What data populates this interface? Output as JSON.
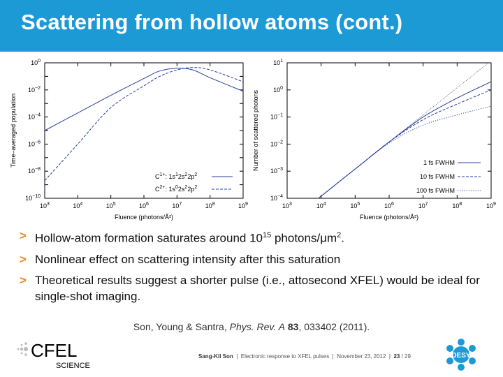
{
  "header": {
    "title": "Scattering from hollow atoms (cont.)",
    "bg_color": "#1b9ad6"
  },
  "bullets": [
    {
      "marker": ">",
      "text": "Hollow-atom formation saturates around 10",
      "sup": "15",
      "tail": " photons/μm",
      "sup2": "2",
      "tail2": "."
    },
    {
      "marker": ">",
      "text": "Nonlinear effect on scattering intensity after this saturation"
    },
    {
      "marker": ">",
      "text": "Theoretical results suggest a shorter pulse (i.e., attosecond XFEL) would be ideal for single-shot imaging."
    }
  ],
  "citation": {
    "authors": "Son, Young & Santra,",
    "journal": "Phys. Rev. A",
    "volume": "83",
    "rest": ", 033402 (2011)."
  },
  "footer": {
    "author": "Sang-Kil Son",
    "talk": "Electronic response to XFEL pulses",
    "date": "November 23, 2012",
    "page": "23",
    "total": "/ 29",
    "sep": "|"
  },
  "logos": {
    "cfel": "CFEL",
    "cfel_sub": "SCIENCE",
    "desy": "DESY",
    "cfel_color": "#1a3a6e",
    "desy_color": "#1b9ad6"
  },
  "chart_data": [
    {
      "type": "line",
      "xlabel": "Fluence (photons/Å²)",
      "ylabel": "Time–averaged population",
      "x_scale": "log",
      "y_scale": "log",
      "xlim": [
        1000.0,
        1000000000.0
      ],
      "ylim": [
        1e-10,
        1.0
      ],
      "x_ticks": [
        "10^3",
        "10^4",
        "10^5",
        "10^6",
        "10^7",
        "10^8",
        "10^9"
      ],
      "y_ticks": [
        "10^0",
        "10^-2",
        "10^-4",
        "10^-6",
        "10^-8",
        "10^-10"
      ],
      "legend_position": "bottom-right",
      "series": [
        {
          "name": "C1+: 1s1 2s2 2p2",
          "style": "solid",
          "x": [
            1000.0,
            10000.0,
            100000.0,
            1000000.0,
            3000000.0,
            10000000.0,
            30000000.0,
            100000000.0,
            1000000000.0
          ],
          "y": [
            1e-05,
            0.0002,
            0.004,
            0.07,
            0.25,
            0.4,
            0.3,
            0.08,
            0.008
          ]
        },
        {
          "name": "C2+: 1s0 2s2 2p2",
          "style": "dashed",
          "x": [
            1000.0,
            10000.0,
            100000.0,
            1000000.0,
            3000000.0,
            10000000.0,
            30000000.0,
            100000000.0,
            1000000000.0
          ],
          "y": [
            2e-09,
            1e-06,
            0.0005,
            0.02,
            0.1,
            0.3,
            0.45,
            0.3,
            0.04
          ]
        }
      ]
    },
    {
      "type": "line",
      "xlabel": "Fluence (photons/Å²)",
      "ylabel": "Number of scattered photons",
      "x_scale": "log",
      "y_scale": "log",
      "xlim": [
        1000.0,
        1000000000.0
      ],
      "ylim": [
        0.0001,
        10.0
      ],
      "x_ticks": [
        "10^3",
        "10^4",
        "10^5",
        "10^6",
        "10^7",
        "10^8",
        "10^9"
      ],
      "y_ticks": [
        "10^1",
        "10^0",
        "10^-1",
        "10^-2",
        "10^-3",
        "10^-4"
      ],
      "legend_position": "bottom-right",
      "series": [
        {
          "name": "1 fs FWHM",
          "style": "solid",
          "x": [
            1000.0,
            10000.0,
            100000.0,
            1000000.0,
            10000000.0,
            100000000.0,
            1000000000.0
          ],
          "y": [
            1.2e-05,
            0.00012,
            0.0012,
            0.012,
            0.1,
            0.5,
            2.0
          ]
        },
        {
          "name": "10 fs FWHM",
          "style": "dashed",
          "x": [
            1000.0,
            10000.0,
            100000.0,
            1000000.0,
            10000000.0,
            100000000.0,
            1000000000.0
          ],
          "y": [
            1.2e-05,
            0.00012,
            0.0012,
            0.012,
            0.08,
            0.3,
            1.0
          ]
        },
        {
          "name": "100 fs FWHM",
          "style": "dotted",
          "x": [
            1000.0,
            10000.0,
            100000.0,
            1000000.0,
            10000000.0,
            100000000.0,
            1000000000.0
          ],
          "y": [
            1.2e-05,
            0.00012,
            0.0012,
            0.011,
            0.05,
            0.12,
            0.25
          ]
        }
      ],
      "reference_line": {
        "style": "dotted-fine",
        "x": [
          1000.0,
          1000000000.0
        ],
        "y": [
          1.2e-05,
          12
        ]
      }
    }
  ]
}
